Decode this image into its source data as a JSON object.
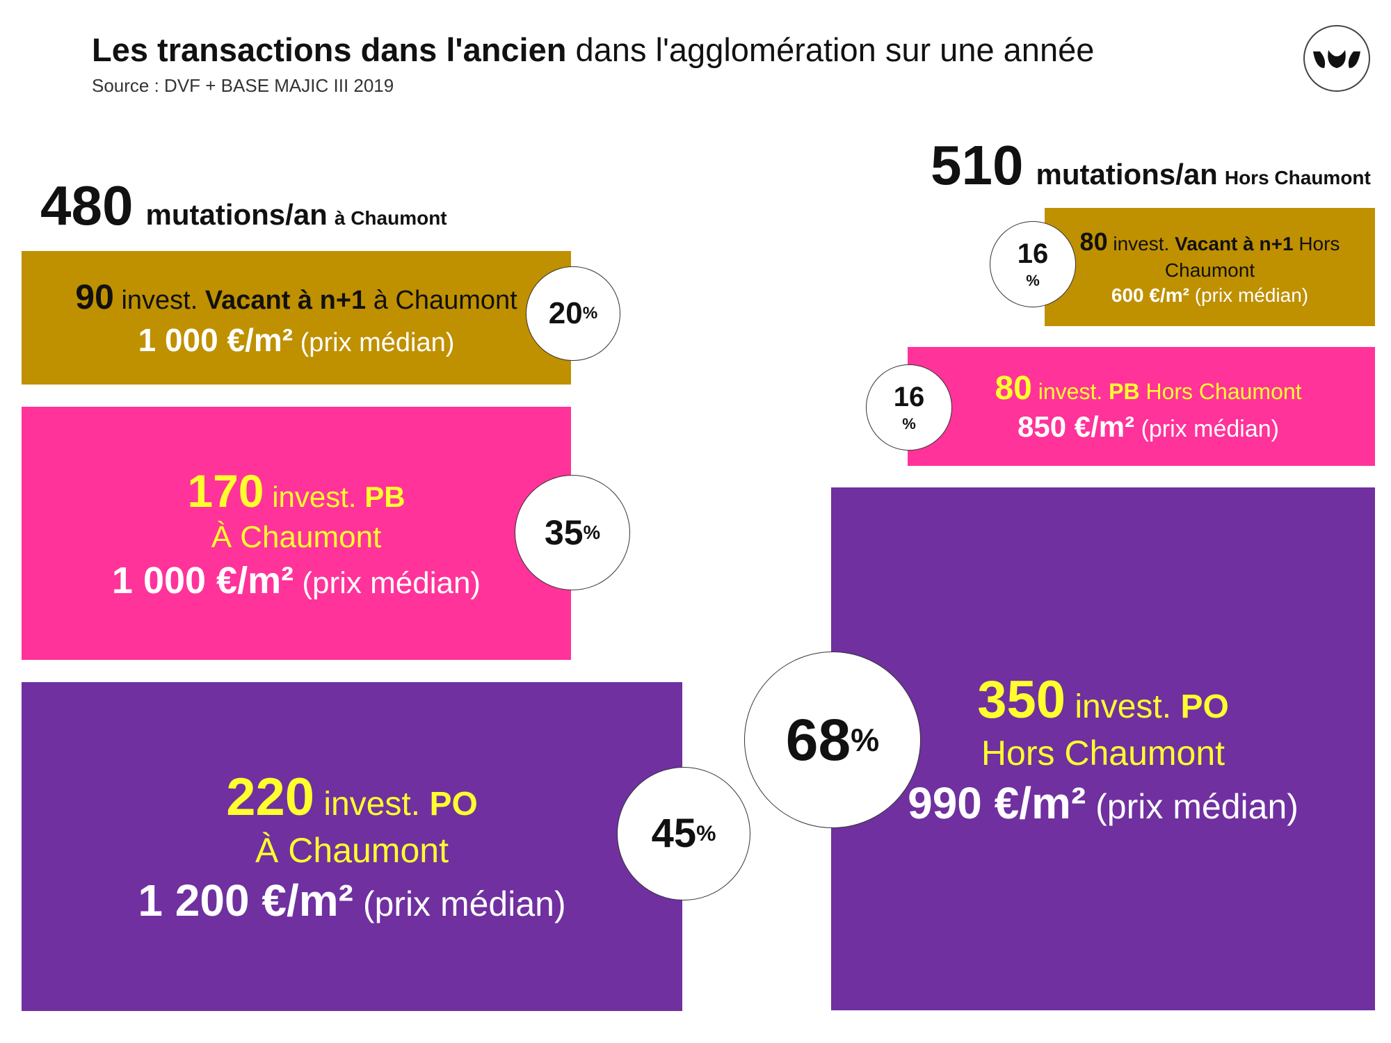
{
  "header": {
    "title_bold": "Les transactions dans l'ancien",
    "title_rest": "dans l'agglomération sur une année",
    "source": "Source : DVF + BASE MAJIC III 2019"
  },
  "logo": {
    "icon": "leaf-trio-icon"
  },
  "chaumont": {
    "count": "480",
    "unit": "mutations/an",
    "place": "à Chaumont",
    "vacant": {
      "num": "90",
      "invest": "invest.",
      "label": "Vacant à n+1",
      "place": "à Chaumont",
      "price": "1 000 €/m²",
      "price_note": "(prix médian)",
      "pct": "20",
      "pct_sign": "%"
    },
    "pb": {
      "num": "170",
      "invest": "invest.",
      "label": "PB",
      "place": "À Chaumont",
      "price": "1 000 €/m²",
      "price_note": "(prix médian)",
      "pct": "35",
      "pct_sign": "%"
    },
    "po": {
      "num": "220",
      "invest": "invest.",
      "label": "PO",
      "place": "À Chaumont",
      "price": "1 200 €/m²",
      "price_note": "(prix médian)",
      "pct": "45",
      "pct_sign": "%"
    }
  },
  "hors": {
    "count": "510",
    "unit": "mutations/an",
    "place": "Hors Chaumont",
    "vacant": {
      "num": "80",
      "invest": "invest.",
      "label": "Vacant à n+1",
      "place_a": "Hors",
      "place_b": "Chaumont",
      "price": "600 €/m²",
      "price_note": "(prix médian)",
      "pct": "16",
      "pct_sign": "%"
    },
    "pb": {
      "num": "80",
      "invest": "invest.",
      "label": "PB",
      "place": "Hors Chaumont",
      "price": "850 €/m²",
      "price_note": "(prix médian)",
      "pct": "16",
      "pct_sign": "%"
    },
    "po": {
      "num": "350",
      "invest": "invest.",
      "label": "PO",
      "place": "Hors Chaumont",
      "price": "990 €/m²",
      "price_note": "(prix médian)",
      "pct": "68",
      "pct_sign": "%"
    }
  },
  "colors": {
    "gold": "#bf9000",
    "pink": "#ff3399",
    "purple": "#7030a0",
    "yellow": "#ffff2e"
  }
}
